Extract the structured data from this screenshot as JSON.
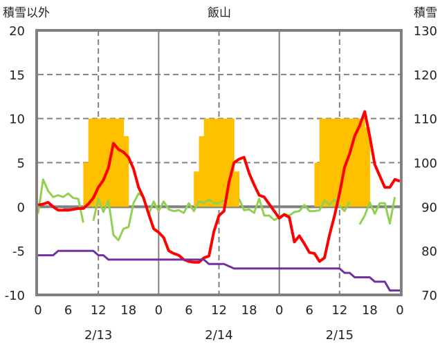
{
  "chart_data": {
    "type": "bar+line",
    "title": "飯山",
    "ylabel_left": "積雪以外",
    "ylabel_right": "積雪",
    "ylim_left": [
      -10,
      20
    ],
    "ylim_right": [
      70,
      130
    ],
    "yticks_left": [
      "20",
      "15",
      "10",
      "5",
      "0",
      "-5",
      "-10"
    ],
    "yticks_right": [
      "130",
      "120",
      "110",
      "100",
      "90",
      "80",
      "70"
    ],
    "xlim_hours": [
      0,
      72
    ],
    "xtick_labels": [
      "0",
      "6",
      "12",
      "18",
      "0",
      "6",
      "12",
      "18",
      "0",
      "6",
      "12",
      "18",
      "0"
    ],
    "date_labels": [
      "2/13",
      "2/14",
      "2/15"
    ],
    "grid": "dashed horizontal every 5, dashed vertical at 12h, solid at day boundaries",
    "colors": {
      "bars": "#FFC000",
      "temp": "#FF0000",
      "green": "#92D050",
      "blue": "#0070C0",
      "snow": "#7030A0",
      "frame": "#808080"
    },
    "bars": {
      "name": "precipitation",
      "axis": "left",
      "hours": [
        9,
        10,
        11,
        12,
        13,
        14,
        15,
        16,
        17,
        31,
        32,
        33,
        34,
        35,
        36,
        37,
        38,
        39,
        55,
        56,
        57,
        58,
        59,
        60,
        61,
        62,
        63,
        64,
        65
      ],
      "values": [
        5,
        10,
        10,
        10,
        10,
        10,
        10,
        10,
        8,
        4,
        8,
        10,
        10,
        10,
        10,
        10,
        10,
        4,
        5,
        10,
        10,
        10,
        10,
        10,
        10,
        10,
        10,
        10,
        9
      ]
    },
    "series": [
      {
        "name": "temperature",
        "axis": "left",
        "color": "#FF0000",
        "values": [
          0.2,
          0.3,
          0.5,
          0,
          -0.4,
          -0.4,
          -0.4,
          -0.3,
          -0.2,
          -0.2,
          0.3,
          1,
          2.2,
          3,
          4.4,
          7.2,
          6.5,
          6.2,
          5.6,
          4.3,
          2.2,
          1,
          -0.8,
          -2.5,
          -2.9,
          -3.5,
          -5,
          -5.3,
          -5.5,
          -6,
          -6.2,
          -6.3,
          -6.3,
          -5.8,
          -5.6,
          -2.8,
          -1,
          -0.5,
          2.8,
          5,
          5.4,
          5.6,
          3.8,
          2.5,
          1.3,
          1.1,
          0.3,
          -0.5,
          -1.3,
          -0.9,
          -1.2,
          -4,
          -3.3,
          -4.2,
          -5.2,
          -5.3,
          -6.2,
          -5.8,
          -3.2,
          -1,
          1.5,
          4.5,
          6,
          8,
          9.2,
          10.8,
          8,
          4.8,
          3.5,
          2.2,
          2.2,
          3.1,
          2.9
        ]
      },
      {
        "name": "green-series",
        "axis": "left",
        "color": "#92D050",
        "values": [
          -0.8,
          3.1,
          1.8,
          1.1,
          1.3,
          1.1,
          1.5,
          1.0,
          0.9,
          -1.8,
          null,
          -1.6,
          0.9,
          -0.6,
          0.7,
          -3.2,
          -3.8,
          -2.5,
          -2.3,
          0.4,
          1.5,
          1.1,
          -0.9,
          0.6,
          -0.5,
          0.6,
          -0.3,
          -0.5,
          -0.4,
          -0.7,
          0.4,
          -0.5,
          0.6,
          0.4,
          0.8,
          0.4,
          0.4,
          0.7,
          1.0,
          null,
          0.9,
          -0.4,
          -0.3,
          -0.7,
          0.9,
          -1.0,
          -1.0,
          -1.5,
          -1.2,
          -0.8,
          -1.0,
          -0.6,
          -0.5,
          0.2,
          -0.5,
          -0.5,
          -0.4,
          0.7,
          0.2,
          0.8,
          0.1,
          -0.5,
          0.6,
          null,
          -2.0,
          -1.0,
          0.5,
          -0.8,
          0.4,
          0.4,
          -1.9,
          1.1,
          null
        ]
      },
      {
        "name": "blue-series",
        "axis": "left",
        "color": "#0070C0",
        "values": [
          null,
          null,
          null,
          null,
          null,
          -0.3,
          -0.3,
          -0.3,
          null
        ]
      },
      {
        "name": "snow-depth",
        "axis": "right",
        "color": "#7030A0",
        "values": [
          79,
          79,
          79,
          79,
          80,
          80,
          80,
          80,
          80,
          80,
          80,
          80,
          79,
          79,
          78,
          78,
          78,
          78,
          78,
          78,
          78,
          78,
          78,
          78,
          78,
          78,
          78,
          78,
          78,
          78,
          78,
          78,
          78,
          78,
          77,
          77,
          77,
          77,
          76.5,
          76,
          76,
          76,
          76,
          76,
          76,
          76,
          76,
          76,
          76,
          76,
          76,
          76,
          76,
          76,
          76,
          76,
          76,
          76,
          76,
          76,
          76,
          75,
          75,
          74,
          74,
          74,
          74,
          73,
          73,
          73,
          71,
          71,
          71
        ]
      }
    ]
  }
}
